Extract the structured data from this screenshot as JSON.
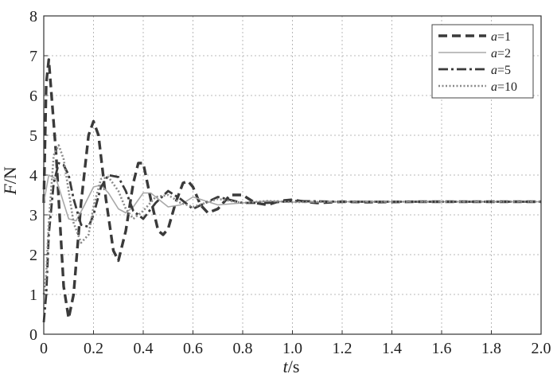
{
  "chart_data": {
    "type": "line",
    "title": "",
    "xlabel": {
      "var": "t",
      "unit": "/s"
    },
    "ylabel": {
      "var": "F",
      "unit": "/N"
    },
    "xlim": [
      0,
      2.0
    ],
    "ylim": [
      0,
      8
    ],
    "xticks": [
      "0",
      "0.2",
      "0.4",
      "0.6",
      "0.8",
      "1.0",
      "1.2",
      "1.4",
      "1.6",
      "1.8",
      "2.0"
    ],
    "xtick_values": [
      0,
      0.2,
      0.4,
      0.6,
      0.8,
      1.0,
      1.2,
      1.4,
      1.6,
      1.8,
      2.0
    ],
    "yticks": [
      "0",
      "1",
      "2",
      "3",
      "4",
      "5",
      "6",
      "7",
      "8"
    ],
    "ytick_values": [
      0,
      1,
      2,
      3,
      4,
      5,
      6,
      7,
      8
    ],
    "grid": true,
    "legend_position": "top-right",
    "series": [
      {
        "name": "a=1",
        "var": "a",
        "eq": "=1",
        "style": "dashed",
        "color": "#3a3a3a",
        "x": [
          0,
          0.01,
          0.02,
          0.05,
          0.08,
          0.1,
          0.12,
          0.15,
          0.18,
          0.2,
          0.22,
          0.25,
          0.28,
          0.3,
          0.33,
          0.36,
          0.38,
          0.4,
          0.43,
          0.46,
          0.48,
          0.5,
          0.53,
          0.56,
          0.58,
          0.6,
          0.63,
          0.66,
          0.7,
          0.75,
          0.8,
          0.85,
          0.9,
          0.95,
          1.0,
          1.05,
          1.1,
          1.2,
          1.3,
          1.5,
          1.7,
          2.0
        ],
        "y": [
          3.3,
          6.3,
          6.9,
          4.5,
          1.2,
          0.4,
          1.0,
          3.3,
          5.0,
          5.35,
          5.0,
          3.4,
          2.1,
          1.85,
          2.6,
          3.8,
          4.3,
          4.3,
          3.4,
          2.6,
          2.5,
          2.65,
          3.3,
          3.8,
          3.85,
          3.7,
          3.25,
          3.05,
          3.15,
          3.5,
          3.5,
          3.3,
          3.25,
          3.35,
          3.38,
          3.33,
          3.3,
          3.33,
          3.32,
          3.33,
          3.33,
          3.33
        ]
      },
      {
        "name": "a=2",
        "var": "a",
        "eq": "=2",
        "style": "solid",
        "color": "#a8a8a8",
        "x": [
          0,
          0.02,
          0.05,
          0.08,
          0.1,
          0.13,
          0.16,
          0.2,
          0.23,
          0.26,
          0.3,
          0.33,
          0.36,
          0.4,
          0.43,
          0.46,
          0.5,
          0.55,
          0.6,
          0.65,
          0.7,
          0.8,
          0.9,
          1.0,
          1.2,
          1.5,
          2.0
        ],
        "y": [
          3.3,
          4.0,
          3.9,
          3.3,
          2.9,
          2.85,
          3.2,
          3.7,
          3.75,
          3.55,
          3.15,
          3.05,
          3.2,
          3.55,
          3.55,
          3.4,
          3.2,
          3.25,
          3.45,
          3.35,
          3.25,
          3.3,
          3.35,
          3.32,
          3.33,
          3.33,
          3.33
        ]
      },
      {
        "name": "a=5",
        "var": "a",
        "eq": "=5",
        "style": "dashdot",
        "color": "#3a3a3a",
        "x": [
          0,
          0.01,
          0.02,
          0.04,
          0.06,
          0.08,
          0.1,
          0.12,
          0.15,
          0.18,
          0.2,
          0.23,
          0.26,
          0.3,
          0.33,
          0.36,
          0.4,
          0.45,
          0.5,
          0.55,
          0.6,
          0.65,
          0.7,
          0.8,
          0.9,
          1.0,
          1.2,
          1.5,
          2.0
        ],
        "y": [
          0.3,
          1.0,
          2.5,
          3.8,
          4.3,
          4.25,
          4.0,
          3.4,
          2.75,
          2.7,
          3.0,
          3.7,
          4.0,
          3.95,
          3.6,
          3.1,
          2.9,
          3.3,
          3.6,
          3.4,
          3.15,
          3.3,
          3.45,
          3.3,
          3.3,
          3.35,
          3.33,
          3.33,
          3.33
        ]
      },
      {
        "name": "a=10",
        "var": "a",
        "eq": "=10",
        "style": "dotted",
        "color": "#8a8a8a",
        "x": [
          0,
          0.01,
          0.02,
          0.04,
          0.06,
          0.08,
          0.1,
          0.12,
          0.15,
          0.18,
          0.2,
          0.23,
          0.26,
          0.3,
          0.33,
          0.36,
          0.4,
          0.45,
          0.5,
          0.55,
          0.6,
          0.65,
          0.7,
          0.8,
          0.9,
          1.0,
          1.2,
          1.5,
          2.0
        ],
        "y": [
          1.0,
          1.5,
          2.8,
          4.5,
          4.75,
          4.4,
          3.6,
          2.8,
          2.3,
          2.5,
          3.2,
          3.9,
          3.95,
          3.6,
          3.15,
          2.9,
          3.1,
          3.45,
          3.5,
          3.3,
          3.2,
          3.3,
          3.4,
          3.3,
          3.35,
          3.32,
          3.33,
          3.33,
          3.33
        ]
      }
    ]
  }
}
